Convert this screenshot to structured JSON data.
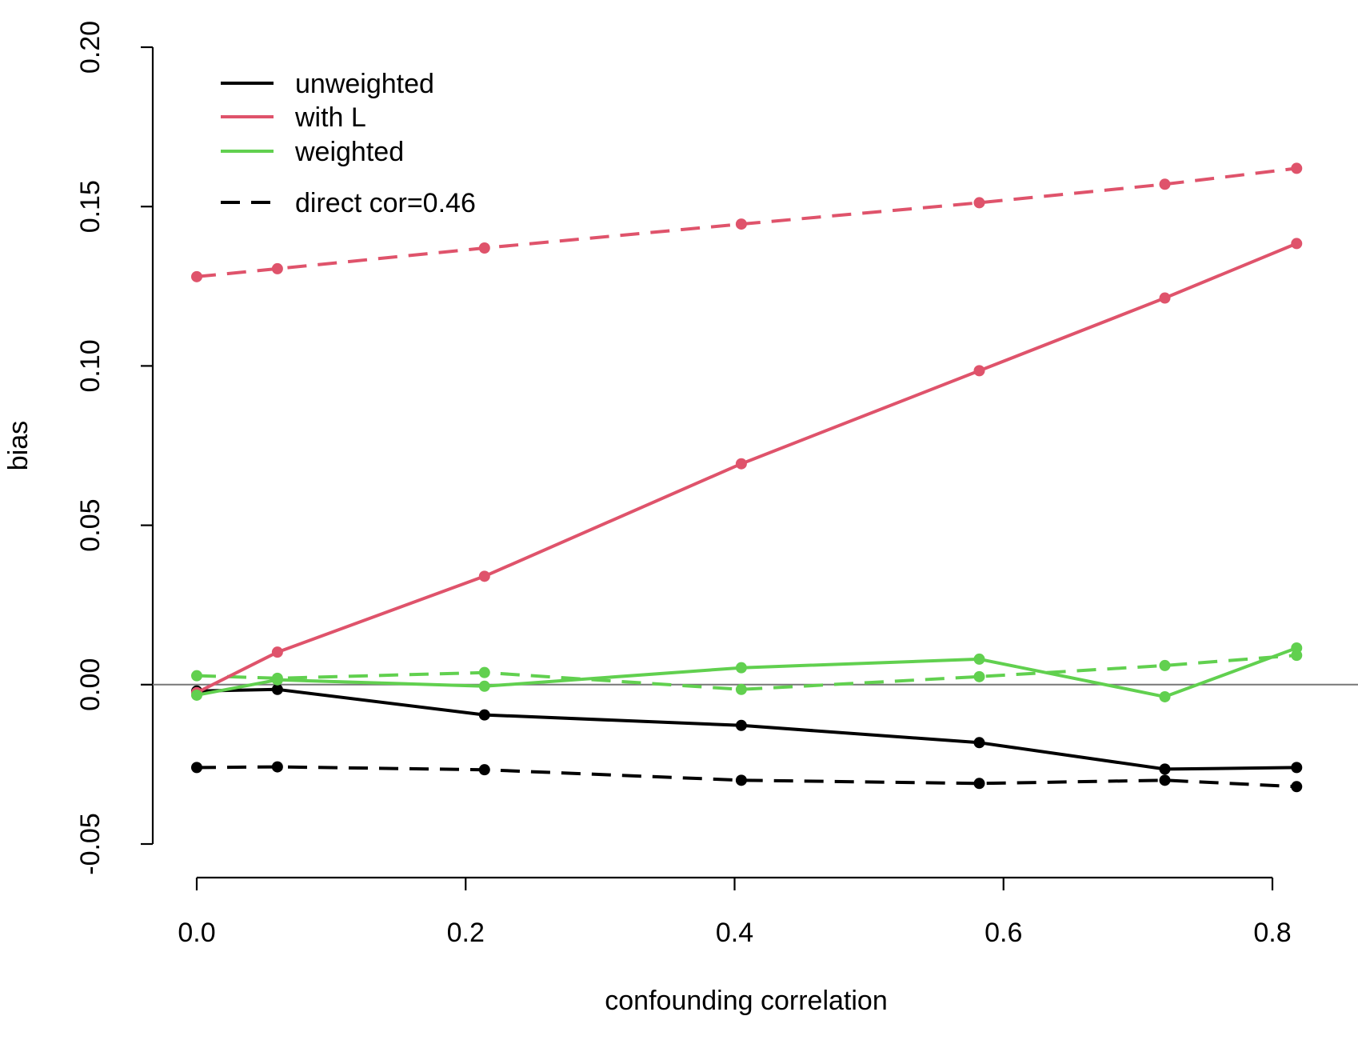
{
  "chart_data": {
    "type": "line",
    "title": "",
    "xlabel": "confounding correlation",
    "ylabel": "bias",
    "xlim": [
      0.0,
      0.8
    ],
    "ylim": [
      -0.05,
      0.2
    ],
    "xticks": [
      "0.0",
      "0.2",
      "0.4",
      "0.6",
      "0.8"
    ],
    "yticks": [
      "-0.05",
      "0.00",
      "0.05",
      "0.10",
      "0.15",
      "0.20"
    ],
    "grid": false,
    "reference_line_y": 0.0,
    "x": [
      0.0,
      0.06,
      0.214,
      0.405,
      0.582,
      0.72,
      0.818
    ],
    "legend": {
      "placement": "top-left",
      "entries": [
        "unweighted",
        "with L",
        "weighted"
      ],
      "linetype_entry": "direct cor=0.46"
    },
    "colors": {
      "unweighted": "#000000",
      "with_L": "#DF536B",
      "weighted": "#61D04F"
    },
    "series": [
      {
        "name": "unweighted",
        "linetype": "solid",
        "color": "#000000",
        "values": [
          -0.002,
          -0.0015,
          -0.0095,
          -0.0128,
          -0.0182,
          -0.0265,
          -0.026
        ]
      },
      {
        "name": "with L",
        "linetype": "solid",
        "color": "#DF536B",
        "values": [
          -0.0025,
          0.0102,
          0.034,
          0.0693,
          0.0985,
          0.1213,
          0.1384
        ]
      },
      {
        "name": "weighted",
        "linetype": "solid",
        "color": "#61D04F",
        "values": [
          -0.0033,
          0.0015,
          -0.0005,
          0.0053,
          0.008,
          -0.0038,
          0.0115
        ]
      },
      {
        "name": "unweighted (direct cor=0.46)",
        "linetype": "dashed",
        "color": "#000000",
        "values": [
          -0.026,
          -0.0258,
          -0.0267,
          -0.03,
          -0.031,
          -0.03,
          -0.032
        ]
      },
      {
        "name": "with L (direct cor=0.46)",
        "linetype": "dashed",
        "color": "#DF536B",
        "values": [
          0.128,
          0.1305,
          0.137,
          0.1445,
          0.1512,
          0.157,
          0.162
        ]
      },
      {
        "name": "weighted (direct cor=0.46)",
        "linetype": "dashed",
        "color": "#61D04F",
        "values": [
          0.0028,
          0.002,
          0.0038,
          -0.0015,
          0.0025,
          0.006,
          0.0092
        ]
      }
    ]
  }
}
